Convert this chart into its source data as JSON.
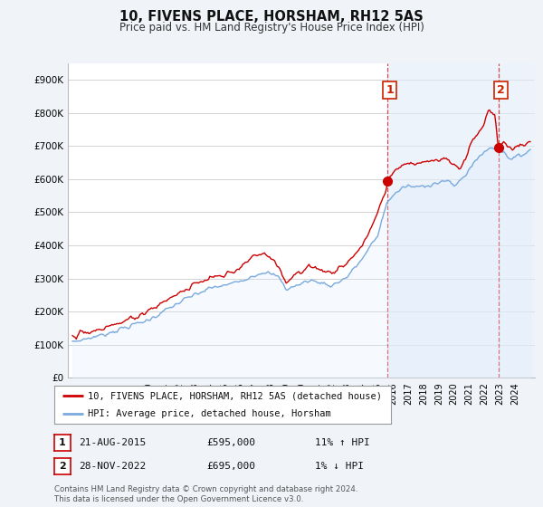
{
  "title": "10, FIVENS PLACE, HORSHAM, RH12 5AS",
  "subtitle": "Price paid vs. HM Land Registry's House Price Index (HPI)",
  "ylabel_ticks": [
    "£0",
    "£100K",
    "£200K",
    "£300K",
    "£400K",
    "£500K",
    "£600K",
    "£700K",
    "£800K",
    "£900K"
  ],
  "ytick_values": [
    0,
    100000,
    200000,
    300000,
    400000,
    500000,
    600000,
    700000,
    800000,
    900000
  ],
  "ylim": [
    0,
    950000
  ],
  "xlim_start": 1994.7,
  "xlim_end": 2025.3,
  "red_line_color": "#cc0000",
  "blue_line_color": "#7aaadd",
  "blue_fill_color": "#ddeeff",
  "marker1_x": 2015.64,
  "marker1_y": 595000,
  "marker2_x": 2022.91,
  "marker2_y": 695000,
  "marker1_label": "1",
  "marker2_label": "2",
  "vline1_x": 2015.64,
  "vline2_x": 2022.91,
  "legend_line1": "10, FIVENS PLACE, HORSHAM, RH12 5AS (detached house)",
  "legend_line2": "HPI: Average price, detached house, Horsham",
  "table_row1": [
    "1",
    "21-AUG-2015",
    "£595,000",
    "11% ↑ HPI"
  ],
  "table_row2": [
    "2",
    "28-NOV-2022",
    "£695,000",
    "1% ↓ HPI"
  ],
  "footnote": "Contains HM Land Registry data © Crown copyright and database right 2024.\nThis data is licensed under the Open Government Licence v3.0.",
  "background_color": "#f0f4f8",
  "plot_bg_color": "#ffffff",
  "grid_color": "#cccccc"
}
